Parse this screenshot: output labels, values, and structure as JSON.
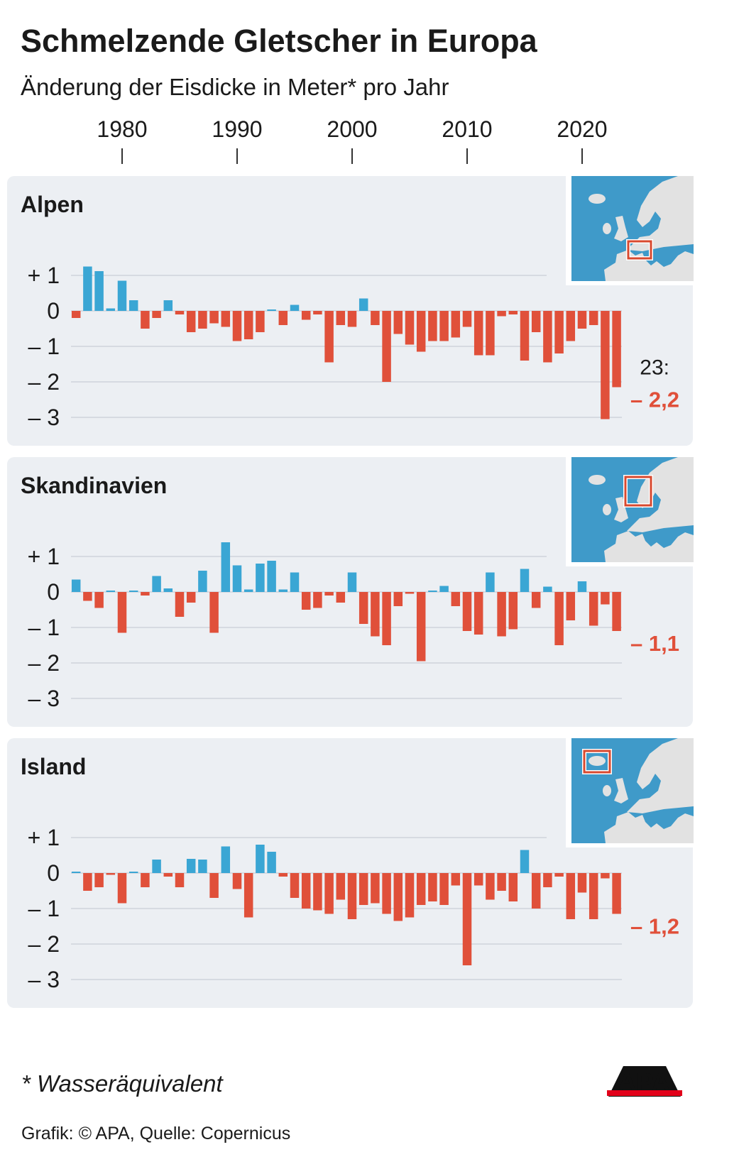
{
  "title": "Schmelzende Gletscher in Europa",
  "subtitle": "Änderung der Eisdicke in Meter* pro Jahr",
  "footnote": "* Wasseräquivalent",
  "source": "Grafik: © APA, Quelle: Copernicus",
  "logo": "APA",
  "colors": {
    "positive": "#3aa6d4",
    "negative": "#e0503a",
    "panel": "#eceff3",
    "water": "#3f9ac9",
    "land": "#e2e2e2",
    "highlight": "#d8492f"
  },
  "chart_data": {
    "type": "bar",
    "x_ticks": [
      1980,
      1990,
      2000,
      2010,
      2020
    ],
    "x_tick_labels": [
      "1980",
      "1990",
      "2000",
      "2010",
      "2020"
    ],
    "x": [
      1976,
      1977,
      1978,
      1979,
      1980,
      1981,
      1982,
      1983,
      1984,
      1985,
      1986,
      1987,
      1988,
      1989,
      1990,
      1991,
      1992,
      1993,
      1994,
      1995,
      1996,
      1997,
      1998,
      1999,
      2000,
      2001,
      2002,
      2003,
      2004,
      2005,
      2006,
      2007,
      2008,
      2009,
      2010,
      2011,
      2012,
      2013,
      2014,
      2015,
      2016,
      2017,
      2018,
      2019,
      2020,
      2021,
      2022,
      2023
    ],
    "y_ticks": [
      1,
      0,
      -1,
      -2,
      -3
    ],
    "y_tick_labels": [
      "+ 1",
      "0",
      "– 1",
      "– 2",
      "– 3"
    ],
    "ylim": [
      -3,
      1
    ],
    "grid": true,
    "panels": [
      {
        "name": "Alpen",
        "map_icon": "europe-map-alps-highlight",
        "highlight": "alps",
        "last_year_label": "23:",
        "last_value_label": "– 2,2",
        "values": [
          -0.2,
          1.25,
          1.12,
          0.07,
          0.85,
          0.3,
          -0.5,
          -0.2,
          0.3,
          -0.1,
          -0.6,
          -0.5,
          -0.35,
          -0.45,
          -0.85,
          -0.8,
          -0.6,
          0.03,
          -0.4,
          0.17,
          -0.25,
          -0.1,
          -1.45,
          -0.4,
          -0.45,
          0.35,
          -0.4,
          -2.0,
          -0.65,
          -0.95,
          -1.15,
          -0.85,
          -0.85,
          -0.75,
          -0.45,
          -1.25,
          -1.25,
          -0.15,
          -0.1,
          -1.4,
          -0.6,
          -1.45,
          -1.2,
          -0.85,
          -0.5,
          -0.4,
          -3.05,
          -2.15
        ]
      },
      {
        "name": "Skandinavien",
        "map_icon": "europe-map-scandinavia-highlight",
        "highlight": "scandinavia",
        "last_value_label": "– 1,1",
        "values": [
          0.35,
          -0.25,
          -0.45,
          0.03,
          -1.15,
          0.03,
          -0.1,
          0.45,
          0.1,
          -0.7,
          -0.3,
          0.6,
          -1.15,
          1.4,
          0.75,
          0.07,
          0.8,
          0.88,
          0.07,
          0.55,
          -0.5,
          -0.45,
          -0.1,
          -0.3,
          0.55,
          -0.9,
          -1.25,
          -1.5,
          -0.4,
          -0.05,
          -1.95,
          0.03,
          0.17,
          -0.4,
          -1.1,
          -1.2,
          0.55,
          -1.25,
          -1.05,
          0.65,
          -0.45,
          0.15,
          -1.5,
          -0.8,
          0.3,
          -0.95,
          -0.35,
          -1.1
        ]
      },
      {
        "name": "Island",
        "map_icon": "europe-map-iceland-highlight",
        "highlight": "iceland",
        "last_value_label": "– 1,2",
        "values": [
          0.03,
          -0.5,
          -0.4,
          -0.05,
          -0.85,
          0.03,
          -0.4,
          0.38,
          -0.1,
          -0.4,
          0.4,
          0.38,
          -0.7,
          0.75,
          -0.45,
          -1.25,
          0.8,
          0.6,
          -0.1,
          -0.7,
          -1.0,
          -1.05,
          -1.15,
          -0.75,
          -1.3,
          -0.9,
          -0.85,
          -1.15,
          -1.35,
          -1.25,
          -0.9,
          -0.8,
          -0.9,
          -0.35,
          -2.6,
          -0.35,
          -0.75,
          -0.5,
          -0.8,
          0.65,
          -1.0,
          -0.4,
          -0.1,
          -1.3,
          -0.55,
          -1.3,
          -0.15,
          -1.15
        ]
      }
    ]
  }
}
